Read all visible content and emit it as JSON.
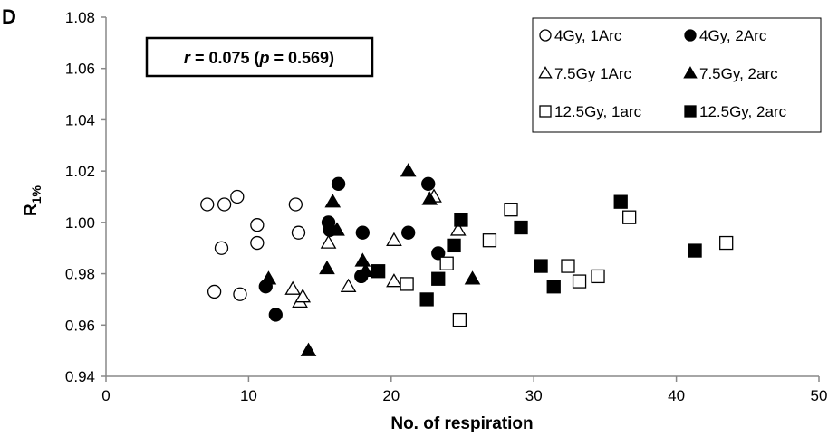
{
  "panel_label": "D",
  "chart_data": {
    "type": "scatter",
    "xlabel": "No. of respiration",
    "ylabel_main": "R",
    "ylabel_sub": "1%",
    "xlim": [
      0,
      50
    ],
    "ylim": [
      0.94,
      1.08
    ],
    "x_ticks": [
      0,
      10,
      20,
      30,
      40,
      50
    ],
    "y_ticks": [
      0.94,
      0.96,
      0.98,
      1.0,
      1.02,
      1.04,
      1.06,
      1.08
    ],
    "y_tick_labels": [
      "0.94",
      "0.96",
      "0.98",
      "1.00",
      "1.02",
      "1.04",
      "1.06",
      "1.08"
    ],
    "grid": false,
    "legend_position": "top-right",
    "annotation": {
      "r_symbol": "r",
      "r_value": " = 0.075 (",
      "p_symbol": "p",
      "p_value": " = 0.569)"
    },
    "series": [
      {
        "name": "4Gy, 1Arc",
        "marker": "circle",
        "filled": false,
        "points": [
          [
            7.1,
            1.007
          ],
          [
            8.1,
            0.99
          ],
          [
            8.3,
            1.007
          ],
          [
            9.2,
            1.01
          ],
          [
            7.6,
            0.973
          ],
          [
            9.4,
            0.972
          ],
          [
            10.6,
            0.999
          ],
          [
            10.6,
            0.992
          ],
          [
            13.3,
            1.007
          ],
          [
            13.5,
            0.996
          ]
        ]
      },
      {
        "name": "4Gy, 2Arc",
        "marker": "circle",
        "filled": true,
        "points": [
          [
            11.2,
            0.975
          ],
          [
            11.9,
            0.964
          ],
          [
            15.6,
            1.0
          ],
          [
            15.7,
            0.997
          ],
          [
            16.3,
            1.015
          ],
          [
            18.0,
            0.996
          ],
          [
            17.9,
            0.979
          ],
          [
            21.2,
            0.996
          ],
          [
            22.6,
            1.015
          ],
          [
            23.3,
            0.988
          ]
        ]
      },
      {
        "name": "7.5Gy 1Arc",
        "marker": "triangle",
        "filled": false,
        "points": [
          [
            13.1,
            0.974
          ],
          [
            13.6,
            0.969
          ],
          [
            13.8,
            0.971
          ],
          [
            15.6,
            0.992
          ],
          [
            17.0,
            0.975
          ],
          [
            20.2,
            0.993
          ],
          [
            20.2,
            0.977
          ],
          [
            23.0,
            1.01
          ],
          [
            24.7,
            0.997
          ]
        ]
      },
      {
        "name": "7.5Gy, 2arc",
        "marker": "triangle",
        "filled": true,
        "points": [
          [
            11.4,
            0.978
          ],
          [
            14.2,
            0.95
          ],
          [
            15.5,
            0.982
          ],
          [
            15.9,
            1.008
          ],
          [
            16.2,
            0.997
          ],
          [
            18.0,
            0.985
          ],
          [
            18.2,
            0.981
          ],
          [
            21.2,
            1.02
          ],
          [
            22.7,
            1.009
          ],
          [
            25.7,
            0.978
          ]
        ]
      },
      {
        "name": "12.5Gy, 1arc",
        "marker": "square",
        "filled": false,
        "points": [
          [
            21.1,
            0.976
          ],
          [
            23.9,
            0.984
          ],
          [
            24.8,
            0.962
          ],
          [
            26.9,
            0.993
          ],
          [
            28.4,
            1.005
          ],
          [
            32.4,
            0.983
          ],
          [
            33.2,
            0.977
          ],
          [
            34.5,
            0.979
          ],
          [
            36.7,
            1.002
          ],
          [
            43.5,
            0.992
          ]
        ]
      },
      {
        "name": "12.5Gy, 2arc",
        "marker": "square",
        "filled": true,
        "points": [
          [
            19.1,
            0.981
          ],
          [
            22.5,
            0.97
          ],
          [
            23.3,
            0.978
          ],
          [
            24.4,
            0.991
          ],
          [
            24.9,
            1.001
          ],
          [
            29.1,
            0.998
          ],
          [
            30.5,
            0.983
          ],
          [
            31.4,
            0.975
          ],
          [
            36.1,
            1.008
          ],
          [
            41.3,
            0.989
          ]
        ]
      }
    ]
  }
}
